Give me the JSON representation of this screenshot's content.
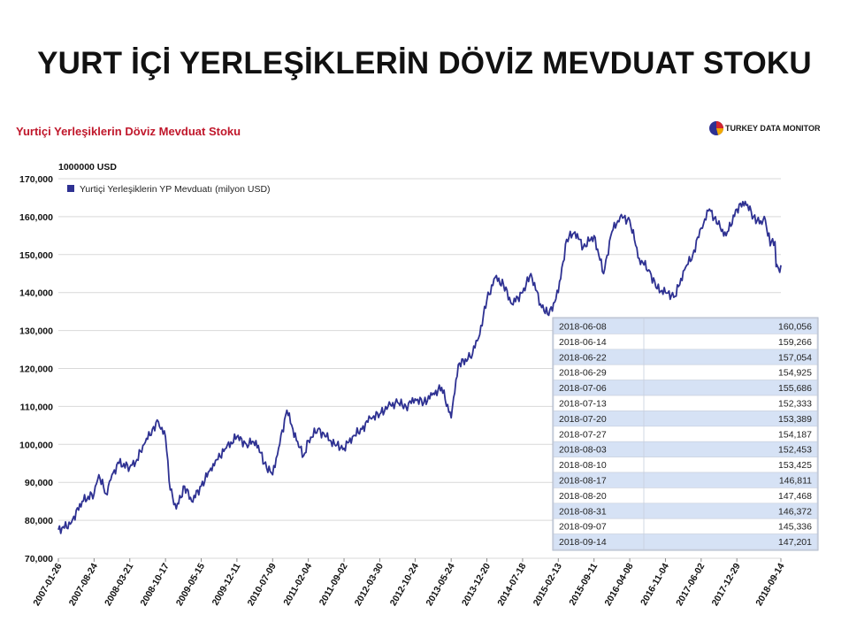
{
  "slide_title": "YURT İÇİ YERLEŞİKLERİN DÖVİZ MEVDUAT STOKU",
  "brand": {
    "text_a": "TURKEY DATA ",
    "text_b": "MONITOR"
  },
  "colors": {
    "line": "#2e3192",
    "title_red": "#c0172b",
    "table_alt": "#d6e2f5",
    "grid": "#d9d9d9"
  },
  "chart_data": {
    "type": "line",
    "title": "Yurtiçi Yerleşiklerin Döviz Mevduat Stoku",
    "unit_label": "1000000 USD",
    "ylim": [
      70000,
      170000
    ],
    "yticks": [
      "170,000",
      "160,000",
      "150,000",
      "140,000",
      "130,000",
      "120,000",
      "110,000",
      "100,000",
      "90,000",
      "80,000",
      "70,000"
    ],
    "xticks": [
      "2007-01-26",
      "2007-08-24",
      "2008-03-21",
      "2008-10-17",
      "2009-05-15",
      "2009-12-11",
      "2010-07-09",
      "2011-02-04",
      "2011-09-02",
      "2012-03-30",
      "2012-10-24",
      "2013-05-24",
      "2013-12-20",
      "2014-07-18",
      "2015-02-13",
      "2015-09-11",
      "2016-04-08",
      "2016-11-04",
      "2017-06-02",
      "2017-12-29",
      "2018-09-14"
    ],
    "grid": "horizontal",
    "legend_position": "top-left",
    "series": [
      {
        "name": "Yurtiçi Yerleşiklerin YP Mevduatı (milyon USD)",
        "x": [
          "2007-01-26",
          "2007-04-06",
          "2007-06-15",
          "2007-08-24",
          "2007-09-21",
          "2007-11-02",
          "2007-12-07",
          "2008-01-18",
          "2008-03-21",
          "2008-05-02",
          "2008-06-13",
          "2008-08-01",
          "2008-09-05",
          "2008-10-17",
          "2008-11-14",
          "2008-12-19",
          "2009-02-06",
          "2009-03-20",
          "2009-05-15",
          "2009-07-03",
          "2009-08-14",
          "2009-10-09",
          "2009-12-11",
          "2010-02-05",
          "2010-04-02",
          "2010-05-21",
          "2010-07-09",
          "2010-08-13",
          "2010-10-01",
          "2010-11-26",
          "2011-01-07",
          "2011-02-04",
          "2011-04-01",
          "2011-05-20",
          "2011-07-08",
          "2011-09-02",
          "2011-10-21",
          "2011-12-16",
          "2012-02-03",
          "2012-03-30",
          "2012-05-18",
          "2012-07-13",
          "2012-08-31",
          "2012-10-24",
          "2012-12-14",
          "2013-02-01",
          "2013-03-29",
          "2013-05-24",
          "2013-07-05",
          "2013-09-13",
          "2013-11-01",
          "2013-12-20",
          "2014-02-07",
          "2014-03-28",
          "2014-05-16",
          "2014-07-18",
          "2014-09-05",
          "2014-10-31",
          "2014-12-19",
          "2015-02-13",
          "2015-04-03",
          "2015-05-22",
          "2015-07-10",
          "2015-09-11",
          "2015-11-06",
          "2015-12-25",
          "2016-02-12",
          "2016-04-08",
          "2016-06-03",
          "2016-07-29",
          "2016-09-16",
          "2016-11-04",
          "2016-12-30",
          "2017-02-24",
          "2017-04-14",
          "2017-06-02",
          "2017-07-21",
          "2017-09-08",
          "2017-10-27",
          "2017-12-29",
          "2018-02-16",
          "2018-04-06",
          "2018-05-25",
          "2018-06-08",
          "2018-06-14",
          "2018-06-22",
          "2018-06-29",
          "2018-07-06",
          "2018-07-13",
          "2018-07-20",
          "2018-07-27",
          "2018-08-03",
          "2018-08-10",
          "2018-08-17",
          "2018-08-20",
          "2018-08-31",
          "2018-09-07",
          "2018-09-14"
        ],
        "values": [
          77500,
          79000,
          85000,
          87000,
          92000,
          87000,
          92000,
          95000,
          94000,
          96000,
          100000,
          104000,
          106000,
          102000,
          88000,
          83000,
          89000,
          85000,
          89000,
          93000,
          96000,
          99000,
          102000,
          100000,
          101000,
          95000,
          92000,
          99000,
          109000,
          101000,
          97000,
          101000,
          104000,
          102000,
          100000,
          99000,
          102000,
          104000,
          107000,
          108000,
          110000,
          111000,
          110000,
          112000,
          111000,
          113000,
          115000,
          107000,
          121000,
          123000,
          128000,
          138000,
          144000,
          142000,
          137000,
          140000,
          145000,
          137000,
          134000,
          140000,
          154000,
          156000,
          152000,
          155000,
          145000,
          156000,
          160000,
          159000,
          149000,
          146000,
          141000,
          140000,
          139000,
          146000,
          150000,
          157000,
          162000,
          158000,
          155000,
          162000,
          164000,
          160000,
          158000,
          160056,
          159266,
          157054,
          154925,
          155686,
          152333,
          153389,
          154187,
          152453,
          153425,
          146811,
          147468,
          146372,
          145336,
          147201
        ]
      }
    ],
    "table": {
      "rows": [
        [
          "2018-06-08",
          "160,056"
        ],
        [
          "2018-06-14",
          "159,266"
        ],
        [
          "2018-06-22",
          "157,054"
        ],
        [
          "2018-06-29",
          "154,925"
        ],
        [
          "2018-07-06",
          "155,686"
        ],
        [
          "2018-07-13",
          "152,333"
        ],
        [
          "2018-07-20",
          "153,389"
        ],
        [
          "2018-07-27",
          "154,187"
        ],
        [
          "2018-08-03",
          "152,453"
        ],
        [
          "2018-08-10",
          "153,425"
        ],
        [
          "2018-08-17",
          "146,811"
        ],
        [
          "2018-08-20",
          "147,468"
        ],
        [
          "2018-08-31",
          "146,372"
        ],
        [
          "2018-09-07",
          "145,336"
        ],
        [
          "2018-09-14",
          "147,201"
        ]
      ]
    }
  }
}
